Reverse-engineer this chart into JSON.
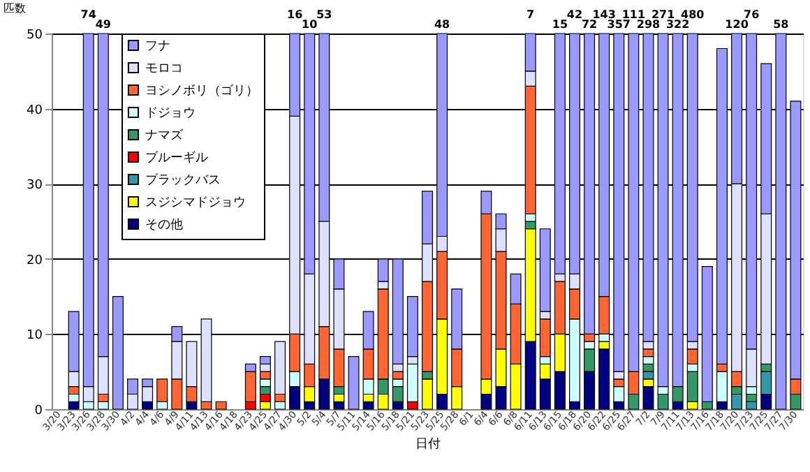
{
  "chart_data": {
    "type": "bar",
    "stacked": true,
    "xlabel": "日付",
    "ylabel": "匹数",
    "categories": [
      "3/20",
      "3/23",
      "3/26",
      "3/28",
      "3/30",
      "4/2",
      "4/4",
      "4/6",
      "4/9",
      "4/11",
      "4/13",
      "4/16",
      "4/18",
      "4/23",
      "4/25",
      "4/27",
      "4/30",
      "5/2",
      "5/4",
      "5/7",
      "5/11",
      "5/14",
      "5/16",
      "5/18",
      "5/21",
      "5/23",
      "5/25",
      "5/28",
      "6/1",
      "6/4",
      "6/6",
      "6/8",
      "6/11",
      "6/13",
      "6/15",
      "6/18",
      "6/20",
      "6/22",
      "6/25",
      "6/27",
      "7/2",
      "7/9",
      "7/11",
      "7/13",
      "7/16",
      "7/18",
      "7/20",
      "7/23",
      "7/25",
      "7/27",
      "7/30"
    ],
    "ylim": [
      0,
      50
    ],
    "yticks": [
      0,
      10,
      20,
      30,
      40,
      50
    ],
    "grid": "y",
    "legend": "top left",
    "series": [
      {
        "name": "その他",
        "color": "#000080",
        "values": [
          0,
          1,
          0,
          0,
          0,
          0,
          1,
          0,
          0,
          1,
          0,
          0,
          0,
          0,
          0,
          0,
          3,
          1,
          4,
          1,
          0,
          1,
          0,
          1,
          0,
          0,
          2,
          0,
          0,
          2,
          3,
          0,
          9,
          4,
          5,
          1,
          5,
          8,
          1,
          0,
          3,
          0,
          1,
          0,
          0,
          1,
          0,
          0,
          2,
          0,
          0
        ]
      },
      {
        "name": "スジシマドジョウ",
        "color": "#ffff00",
        "values": [
          0,
          0,
          0,
          0,
          0,
          0,
          0,
          0,
          0,
          0,
          0,
          0,
          0,
          0,
          1,
          0,
          0,
          2,
          0,
          1,
          0,
          1,
          2,
          0,
          0,
          4,
          10,
          3,
          0,
          2,
          5,
          6,
          15,
          2,
          5,
          0,
          0,
          1,
          0,
          0,
          1,
          0,
          0,
          1,
          0,
          0,
          0,
          0,
          0,
          0,
          0
        ]
      },
      {
        "name": "ブラックバス",
        "color": "#3399aa",
        "values": [
          0,
          0,
          0,
          0,
          0,
          0,
          0,
          0,
          0,
          0,
          0,
          0,
          0,
          0,
          0,
          0,
          0,
          0,
          0,
          0,
          0,
          0,
          0,
          0,
          0,
          0,
          0,
          0,
          0,
          0,
          0,
          0,
          0,
          0,
          0,
          0,
          0,
          0,
          0,
          0,
          1,
          0,
          0,
          0,
          0,
          0,
          2,
          1,
          3,
          0,
          0
        ]
      },
      {
        "name": "ブルーギル",
        "color": "#ff0000",
        "values": [
          0,
          0,
          0,
          0,
          0,
          0,
          0,
          0,
          0,
          0,
          0,
          0,
          0,
          1,
          1,
          0,
          0,
          0,
          0,
          0,
          0,
          0,
          0,
          0,
          1,
          0,
          0,
          0,
          0,
          0,
          0,
          0,
          0,
          0,
          0,
          0,
          0,
          0,
          0,
          0,
          0,
          0,
          0,
          0,
          0,
          0,
          0,
          0,
          0,
          0,
          0
        ]
      },
      {
        "name": "ナマズ",
        "color": "#339966",
        "values": [
          0,
          0,
          0,
          0,
          0,
          0,
          0,
          0,
          0,
          0,
          0,
          0,
          0,
          0,
          1,
          0,
          0,
          0,
          0,
          1,
          0,
          0,
          2,
          2,
          0,
          1,
          0,
          0,
          0,
          0,
          0,
          0,
          1,
          0,
          0,
          0,
          3,
          0,
          0,
          2,
          1,
          2,
          2,
          4,
          1,
          0,
          1,
          1,
          1,
          0,
          2
        ]
      },
      {
        "name": "ドジョウ",
        "color": "#ccffff",
        "values": [
          0,
          1,
          1,
          1,
          0,
          0,
          0,
          1,
          0,
          0,
          0,
          0,
          0,
          0,
          1,
          1,
          2,
          0,
          0,
          0,
          0,
          2,
          0,
          1,
          5,
          0,
          0,
          0,
          0,
          0,
          0,
          0,
          1,
          1,
          0,
          11,
          1,
          1,
          2,
          0,
          1,
          1,
          0,
          1,
          0,
          4,
          0,
          1,
          0,
          0,
          0
        ]
      },
      {
        "name": "ヨシノボリ（ゴリ）",
        "color": "#ff6633",
        "values": [
          0,
          1,
          0,
          1,
          0,
          0,
          0,
          3,
          4,
          2,
          1,
          1,
          0,
          4,
          1,
          1,
          5,
          3,
          7,
          5,
          0,
          4,
          12,
          1,
          0,
          12,
          9,
          5,
          0,
          22,
          13,
          8,
          17,
          5,
          7,
          4,
          1,
          5,
          1,
          3,
          1,
          0,
          0,
          2,
          0,
          1,
          2,
          0,
          0,
          0,
          2
        ]
      },
      {
        "name": "モロコ",
        "color": "#dde0ff",
        "values": [
          0,
          2,
          2,
          5,
          0,
          2,
          2,
          0,
          5,
          6,
          11,
          0,
          0,
          0,
          1,
          7,
          29,
          12,
          14,
          8,
          0,
          0,
          1,
          1,
          1,
          5,
          2,
          0,
          0,
          0,
          3,
          0,
          2,
          1,
          1,
          2,
          0,
          0,
          1,
          0,
          1,
          0,
          0,
          1,
          0,
          0,
          25,
          5,
          20,
          0,
          0
        ]
      },
      {
        "name": "フナ",
        "color": "#9999ff",
        "values": [
          0,
          8,
          47,
          43,
          15,
          2,
          1,
          0,
          2,
          0,
          0,
          0,
          0,
          1,
          1,
          0,
          11,
          32,
          25,
          4,
          7,
          5,
          3,
          14,
          8,
          7,
          27,
          8,
          0,
          3,
          2,
          4,
          5,
          11,
          32,
          32,
          40,
          35,
          45,
          45,
          41,
          47,
          47,
          41,
          18,
          42,
          20,
          42,
          20,
          50,
          37
        ]
      }
    ],
    "annotations": [
      {
        "text": "74",
        "x": "3/26",
        "y": 50
      },
      {
        "text": "49",
        "x": "3/28",
        "y": 50
      },
      {
        "text": "16",
        "x": "4/30",
        "y": 50
      },
      {
        "text": "10",
        "x": "5/2",
        "y": 50
      },
      {
        "text": "53",
        "x": "5/4",
        "y": 50
      },
      {
        "text": "48",
        "x": "5/25",
        "y": 50
      },
      {
        "text": "7",
        "x": "6/11",
        "y": 50
      },
      {
        "text": "15",
        "x": "6/15",
        "y": 50
      },
      {
        "text": "42",
        "x": "6/18",
        "y": 50
      },
      {
        "text": "72",
        "x": "6/20",
        "y": 50
      },
      {
        "text": "143",
        "x": "6/22",
        "y": 50
      },
      {
        "text": "357",
        "x": "6/25",
        "y": 50
      },
      {
        "text": "111",
        "x": "6/27",
        "y": 50
      },
      {
        "text": "298",
        "x": "7/2",
        "y": 50
      },
      {
        "text": "271",
        "x": "7/9",
        "y": 50
      },
      {
        "text": "322",
        "x": "7/11",
        "y": 50
      },
      {
        "text": "480",
        "x": "7/13",
        "y": 50
      },
      {
        "text": "120",
        "x": "7/20",
        "y": 50
      },
      {
        "text": "76",
        "x": "7/23",
        "y": 50
      },
      {
        "text": "58",
        "x": "7/27",
        "y": 50
      }
    ]
  }
}
